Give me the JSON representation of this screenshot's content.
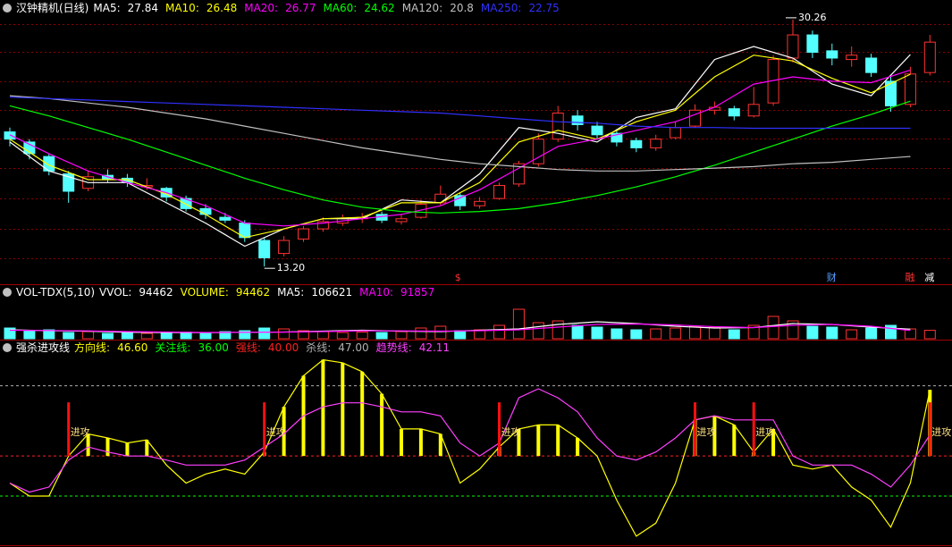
{
  "chart_data": [
    {
      "type": "candlestick",
      "title": "汉钟精机(日线)",
      "ylim": [
        12.1,
        30.5
      ],
      "up_color": "#ff3232",
      "down_color": "#54ffff",
      "candles": {
        "open": [
          22.5,
          21.8,
          20.8,
          19.6,
          18.6,
          19.5,
          19.3,
          18.7,
          18.6,
          17.9,
          17.2,
          16.6,
          16.2,
          15.0,
          14.1,
          15.1,
          15.8,
          16.2,
          16.5,
          16.8,
          16.3,
          16.6,
          17.6,
          18.1,
          17.4,
          17.9,
          18.9,
          20.3,
          22.0,
          23.6,
          22.9,
          22.4,
          21.9,
          21.4,
          22.1,
          22.9,
          24.0,
          24.1,
          23.6,
          24.5,
          27.6,
          29.2,
          28.1,
          27.5,
          27.6,
          26.0,
          24.4,
          26.6
        ],
        "high": [
          22.8,
          22.0,
          21.0,
          19.8,
          19.8,
          19.9,
          19.6,
          19.3,
          18.7,
          18.1,
          17.5,
          16.9,
          16.4,
          15.2,
          15.3,
          16.0,
          16.6,
          16.8,
          16.9,
          17.0,
          16.8,
          17.8,
          18.8,
          18.3,
          18.0,
          19.0,
          20.5,
          22.4,
          24.3,
          24.0,
          23.2,
          22.7,
          22.1,
          22.3,
          23.2,
          24.4,
          24.6,
          24.3,
          25.6,
          27.8,
          30.26,
          29.5,
          28.6,
          28.4,
          27.9,
          26.3,
          27.0,
          29.2
        ],
        "low": [
          21.5,
          20.6,
          19.5,
          17.6,
          18.4,
          19.0,
          18.7,
          18.5,
          17.7,
          17.0,
          16.5,
          16.2,
          14.9,
          13.2,
          13.9,
          14.9,
          15.6,
          16.0,
          16.2,
          16.2,
          16.1,
          16.5,
          17.4,
          17.1,
          17.2,
          17.8,
          18.7,
          20.1,
          21.8,
          22.6,
          22.0,
          21.5,
          21.1,
          21.2,
          22.0,
          22.8,
          23.7,
          23.3,
          23.5,
          24.3,
          27.3,
          27.6,
          27.1,
          27.0,
          26.3,
          23.9,
          24.2,
          26.4
        ],
        "close": [
          22.0,
          21.0,
          19.8,
          18.4,
          19.4,
          19.2,
          19.0,
          18.8,
          18.0,
          17.2,
          16.8,
          16.4,
          15.2,
          13.8,
          15.0,
          15.8,
          16.3,
          16.5,
          16.6,
          16.4,
          16.5,
          17.5,
          18.2,
          17.4,
          17.7,
          18.8,
          20.3,
          22.0,
          23.8,
          23.0,
          22.3,
          21.8,
          21.4,
          22.0,
          22.8,
          24.0,
          24.2,
          23.6,
          24.4,
          27.5,
          29.2,
          28.0,
          27.6,
          27.8,
          26.6,
          24.3,
          26.5,
          28.7
        ]
      },
      "extremes": {
        "high": {
          "index": 40,
          "label": "30.26"
        },
        "low": {
          "index": 13,
          "label": "13.20"
        }
      },
      "ma_x": [
        0,
        2,
        4,
        6,
        8,
        10,
        12,
        14,
        16,
        18,
        20,
        22,
        24,
        26,
        28,
        30,
        32,
        34,
        36,
        38,
        40,
        42,
        44,
        46
      ],
      "series": [
        {
          "name": "MA5:",
          "color": "#ffffff",
          "values": [
            21.8,
            19.8,
            19.0,
            19.0,
            17.6,
            16.2,
            14.6,
            15.8,
            16.5,
            16.5,
            17.8,
            17.6,
            19.6,
            22.8,
            22.4,
            21.8,
            23.5,
            24.1,
            27.5,
            28.4,
            27.6,
            25.8,
            25.0,
            27.84
          ]
        },
        {
          "name": "MA10:",
          "color": "#ffff00",
          "values": [
            22.0,
            20.2,
            19.2,
            19.2,
            18.2,
            16.8,
            15.2,
            15.8,
            16.5,
            16.6,
            17.6,
            17.6,
            19.0,
            21.8,
            22.6,
            22.0,
            23.2,
            24.0,
            26.3,
            27.8,
            27.4,
            26.2,
            25.2,
            26.48
          ]
        },
        {
          "name": "MA20:",
          "color": "#ff00ff",
          "values": [
            22.3,
            21.0,
            19.8,
            19.0,
            18.3,
            17.4,
            16.2,
            16.0,
            16.2,
            16.5,
            16.8,
            17.4,
            18.5,
            20.0,
            21.5,
            22.0,
            22.6,
            23.2,
            24.2,
            25.8,
            26.3,
            26.0,
            25.9,
            26.77
          ]
        },
        {
          "name": "MA60:",
          "color": "#00ff00",
          "values": [
            24.3,
            23.6,
            22.8,
            22.0,
            21.1,
            20.2,
            19.3,
            18.5,
            17.8,
            17.3,
            17.0,
            16.9,
            17.0,
            17.2,
            17.6,
            18.1,
            18.7,
            19.4,
            20.2,
            21.1,
            22.0,
            22.9,
            23.7,
            24.62
          ]
        },
        {
          "name": "MA120:",
          "color": "#c0c0c0",
          "values": [
            25.0,
            24.8,
            24.5,
            24.2,
            23.8,
            23.4,
            22.9,
            22.4,
            21.9,
            21.4,
            21.0,
            20.6,
            20.3,
            20.1,
            19.9,
            19.8,
            19.8,
            19.9,
            20.0,
            20.1,
            20.3,
            20.4,
            20.6,
            20.8
          ]
        },
        {
          "name": "MA250:",
          "color": "#3030ff",
          "values": [
            24.9,
            24.8,
            24.7,
            24.6,
            24.5,
            24.4,
            24.3,
            24.2,
            24.1,
            24.0,
            23.9,
            23.8,
            23.6,
            23.4,
            23.2,
            23.1,
            22.9,
            22.8,
            22.8,
            22.75,
            22.75,
            22.75,
            22.75,
            22.75
          ]
        }
      ],
      "events": [
        {
          "x": 23,
          "label": "$",
          "color": "#ff3232"
        },
        {
          "x": 42,
          "label": "财",
          "color": "#54a0ff"
        },
        {
          "x": 46,
          "label": "融",
          "color": "#ff3232"
        },
        {
          "x": 47,
          "label": "减",
          "color": "#ffffff"
        }
      ]
    },
    {
      "type": "bar",
      "title": "VOL-TDX(5,10)",
      "ylim": [
        0,
        450000
      ],
      "values": [
        120000,
        90000,
        100000,
        70000,
        80000,
        60000,
        70000,
        60000,
        65000,
        75000,
        70000,
        80000,
        90000,
        120000,
        110000,
        90000,
        80000,
        70000,
        75000,
        70000,
        80000,
        120000,
        140000,
        90000,
        100000,
        150000,
        330000,
        180000,
        200000,
        150000,
        130000,
        110000,
        100000,
        110000,
        120000,
        140000,
        130000,
        100000,
        150000,
        250000,
        200000,
        140000,
        130000,
        100000,
        120000,
        150000,
        110000,
        94462
      ],
      "readouts": [
        {
          "name": "VVOL:",
          "color": "#ffffff"
        },
        {
          "name": "VOLUME:",
          "color": "#ffff00"
        }
      ],
      "ma_x": [
        0,
        2,
        4,
        6,
        8,
        10,
        12,
        14,
        16,
        18,
        20,
        22,
        24,
        26,
        28,
        30,
        32,
        34,
        36,
        38,
        40,
        42,
        44,
        46
      ],
      "series": [
        {
          "name": "MA5:",
          "color": "#ffffff",
          "values": [
            100000,
            90000,
            85000,
            72000,
            70000,
            68000,
            72000,
            75000,
            85000,
            95000,
            85000,
            80000,
            95000,
            110000,
            160000,
            190000,
            170000,
            140000,
            120000,
            125000,
            170000,
            160000,
            130000,
            106621
          ]
        },
        {
          "name": "MA10:",
          "color": "#ff00ff",
          "values": [
            95000,
            92000,
            88000,
            80000,
            75000,
            70000,
            72000,
            74000,
            80000,
            88000,
            88000,
            85000,
            90000,
            100000,
            130000,
            160000,
            165000,
            155000,
            135000,
            125000,
            150000,
            160000,
            140000,
            91857
          ]
        }
      ]
    },
    {
      "type": "line",
      "title": "强杀进攻线",
      "ylim": [
        31.1,
        50
      ],
      "series": [
        {
          "name": "方向线:",
          "color": "#ffff00",
          "bars": true,
          "last_label": "46.60",
          "values": [
            37.3,
            36.0,
            36.0,
            40,
            42.2,
            41.8,
            41.3,
            41.6,
            39.1,
            37.3,
            38.2,
            38.7,
            38.2,
            40.4,
            44.9,
            48.0,
            49.6,
            49.3,
            48.4,
            46.2,
            42.7,
            42.7,
            42.2,
            37.3,
            38.7,
            40.9,
            42.7,
            43.1,
            43.1,
            41.8,
            40,
            35.6,
            32.0,
            33.3,
            37.3,
            43.6,
            44.0,
            43.1,
            40.4,
            42.7,
            39.1,
            38.7,
            39.1,
            36.9,
            35.6,
            32.9,
            37.3,
            46.6
          ]
        },
        {
          "name": "关注线:",
          "color": "#00ff00",
          "level": 36,
          "level_label": "36.00"
        },
        {
          "name": "强线:",
          "color": "#ff2020",
          "level": 40,
          "level_label": "40.00",
          "bars_above": true
        },
        {
          "name": "杀线:",
          "color": "#b0b0b0",
          "level": 47,
          "level_label": "47.00"
        },
        {
          "name": "趋势线:",
          "color": "#ff40ff",
          "values": [
            37.3,
            36.4,
            36.9,
            39.6,
            40.9,
            40.4,
            40,
            40,
            39.6,
            39.1,
            39.1,
            39.1,
            39.6,
            40.9,
            42.2,
            44,
            44.9,
            45.3,
            45.3,
            44.9,
            44.4,
            44.4,
            44,
            41.3,
            40,
            41.3,
            45.8,
            46.7,
            45.8,
            44.4,
            41.8,
            40,
            39.6,
            40.4,
            41.8,
            43.6,
            44,
            43.6,
            43.6,
            43.6,
            40,
            39.1,
            39.1,
            39.1,
            38.2,
            36.9,
            39.1,
            42.11
          ]
        }
      ],
      "signals": [
        {
          "x": 3,
          "label": "进攻"
        },
        {
          "x": 13,
          "label": "进攻"
        },
        {
          "x": 25,
          "label": "进攻"
        },
        {
          "x": 35,
          "label": "进攻"
        },
        {
          "x": 38,
          "label": "进攻"
        },
        {
          "x": 47,
          "label": "进攻"
        }
      ],
      "signal_color": "#ff1010"
    }
  ]
}
